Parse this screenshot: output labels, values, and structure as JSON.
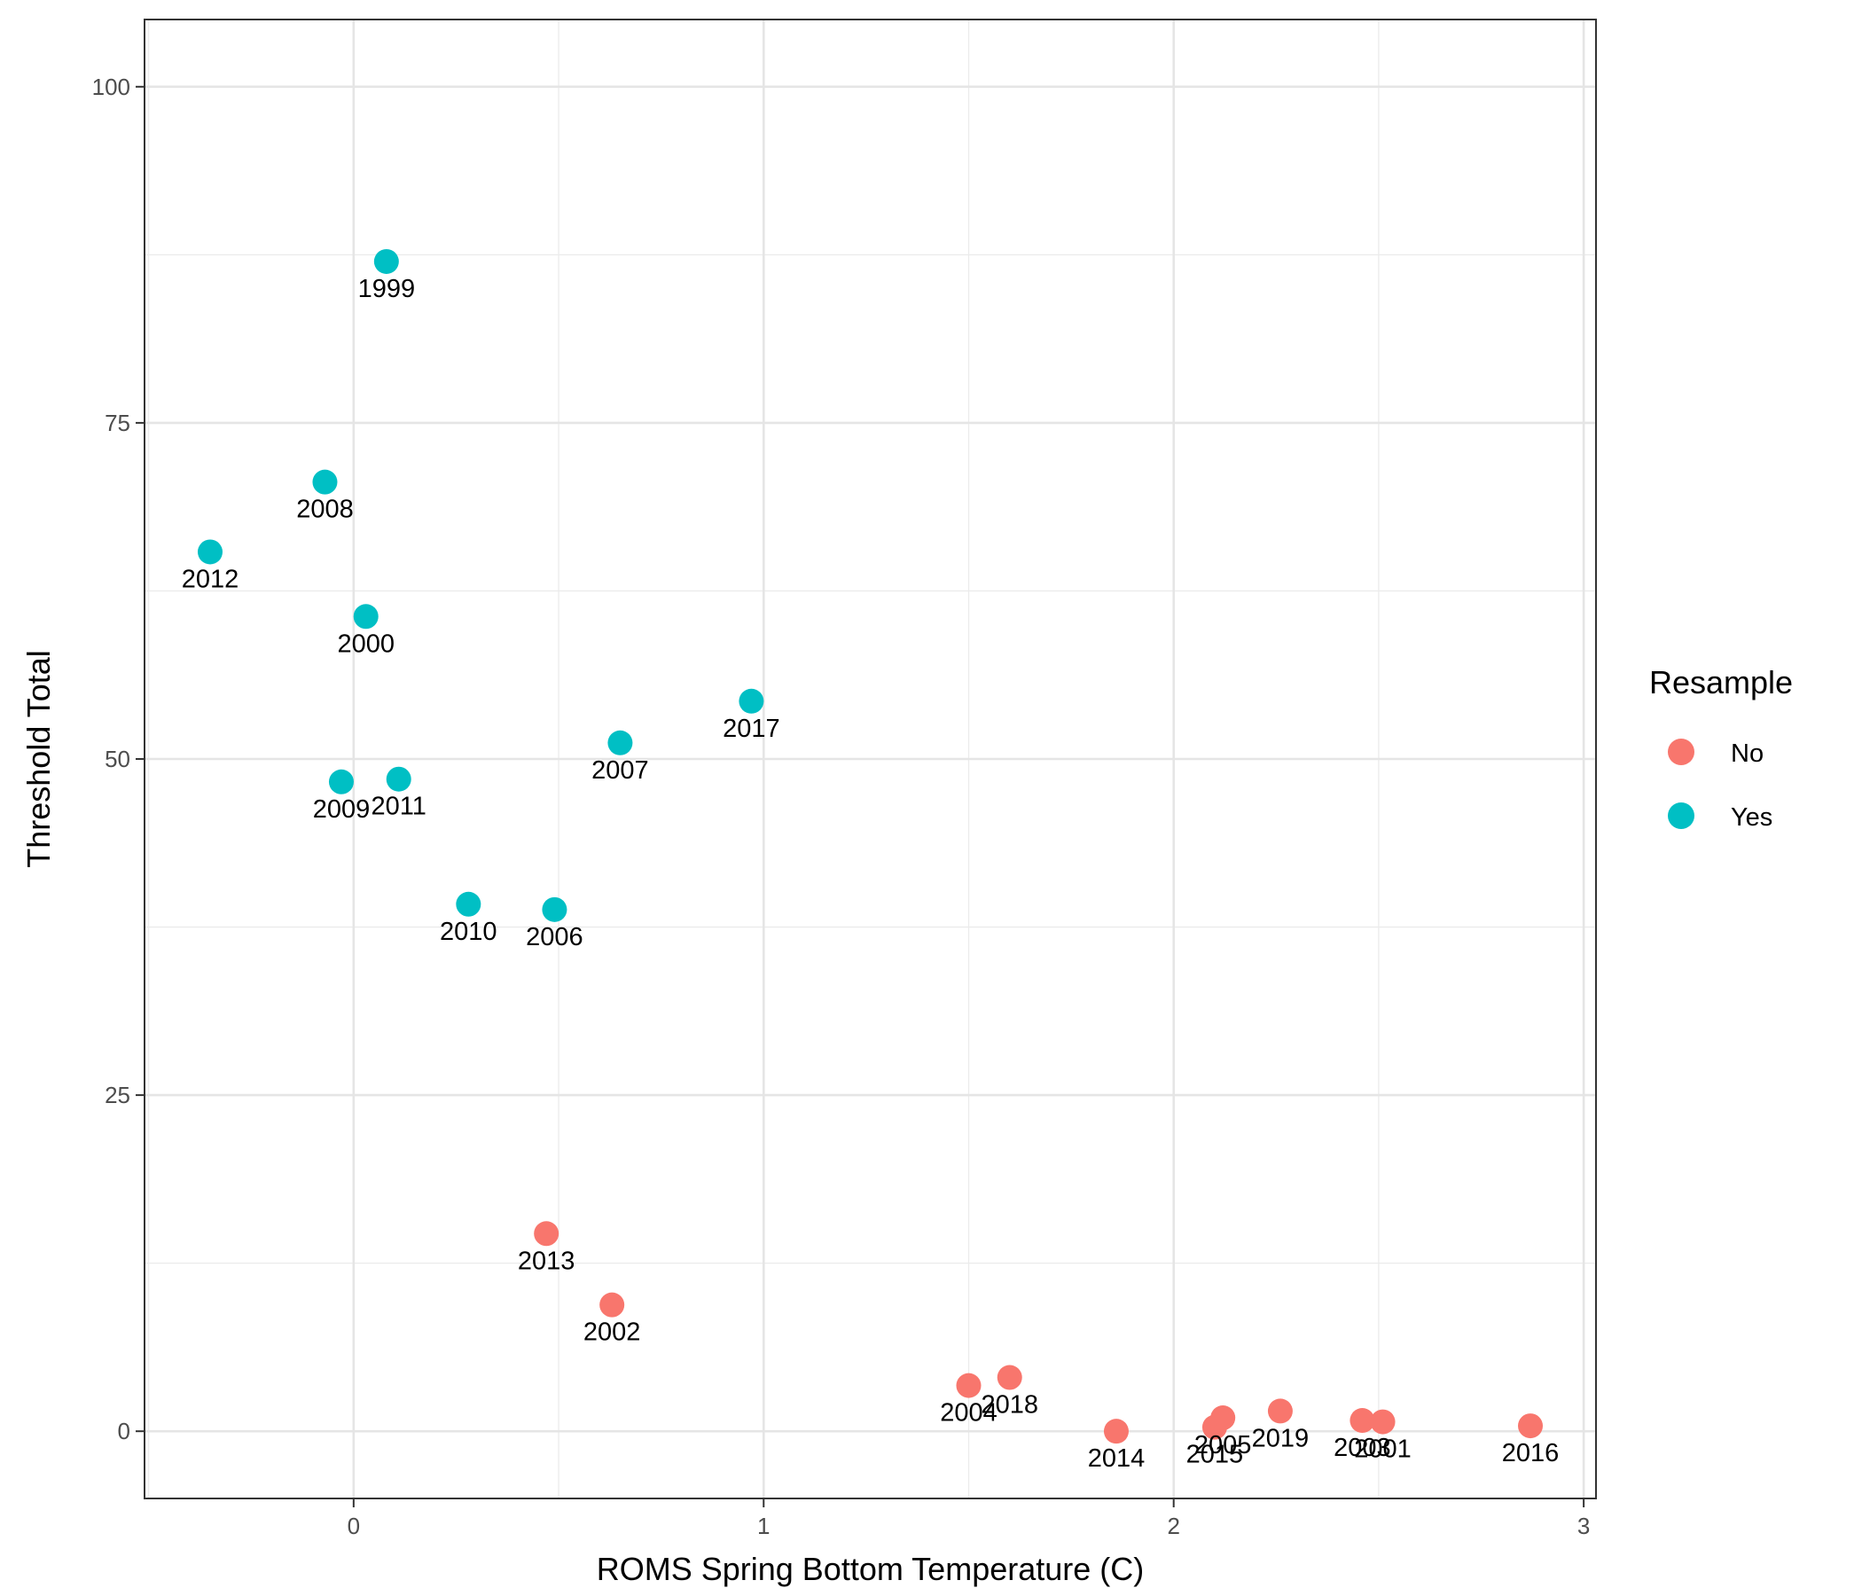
{
  "chart_data": {
    "type": "scatter",
    "title": "",
    "xlabel": "ROMS Spring Bottom Temperature (C)",
    "ylabel": "Threshold Total",
    "xlim": [
      -0.51,
      3.03
    ],
    "ylim": [
      -5,
      105
    ],
    "xticks": [
      0,
      1,
      2,
      3
    ],
    "xtick_labels": [
      "0",
      "1",
      "2",
      "3"
    ],
    "yticks": [
      0,
      25,
      50,
      75,
      100
    ],
    "ytick_labels": [
      "0",
      "25",
      "50",
      "75",
      "100"
    ],
    "x_minor": [
      -0.5,
      0.5,
      1.5,
      2.5
    ],
    "y_minor": [
      12.5,
      37.5,
      62.5,
      87.5
    ],
    "grid": true,
    "legend": {
      "title": "Resample",
      "position": "right",
      "entries": [
        {
          "label": "No",
          "color": "#F8766D"
        },
        {
          "label": "Yes",
          "color": "#00BFC4"
        }
      ]
    },
    "series": [
      {
        "name": "No",
        "color": "#F8766D",
        "points": [
          {
            "x": 0.47,
            "y": 14.7,
            "label": "2013"
          },
          {
            "x": 0.63,
            "y": 9.4,
            "label": "2002"
          },
          {
            "x": 1.5,
            "y": 3.4,
            "label": "2004"
          },
          {
            "x": 1.6,
            "y": 4.0,
            "label": "2018"
          },
          {
            "x": 1.86,
            "y": 0.0,
            "label": "2014"
          },
          {
            "x": 2.1,
            "y": 0.3,
            "label": "2015"
          },
          {
            "x": 2.12,
            "y": 1.0,
            "label": "2005"
          },
          {
            "x": 2.26,
            "y": 1.5,
            "label": "2019"
          },
          {
            "x": 2.46,
            "y": 0.8,
            "label": "2003"
          },
          {
            "x": 2.51,
            "y": 0.7,
            "label": "2001"
          },
          {
            "x": 2.87,
            "y": 0.4,
            "label": "2016"
          }
        ]
      },
      {
        "name": "Yes",
        "color": "#00BFC4",
        "points": [
          {
            "x": 0.08,
            "y": 87.0,
            "label": "1999"
          },
          {
            "x": -0.07,
            "y": 70.6,
            "label": "2008"
          },
          {
            "x": -0.35,
            "y": 65.4,
            "label": "2012"
          },
          {
            "x": 0.03,
            "y": 60.6,
            "label": "2000"
          },
          {
            "x": 0.97,
            "y": 54.3,
            "label": "2017"
          },
          {
            "x": 0.65,
            "y": 51.2,
            "label": "2007"
          },
          {
            "x": -0.03,
            "y": 48.3,
            "label": "2009"
          },
          {
            "x": 0.11,
            "y": 48.5,
            "label": "2011"
          },
          {
            "x": 0.28,
            "y": 39.2,
            "label": "2010"
          },
          {
            "x": 0.49,
            "y": 38.8,
            "label": "2006"
          }
        ]
      }
    ]
  }
}
